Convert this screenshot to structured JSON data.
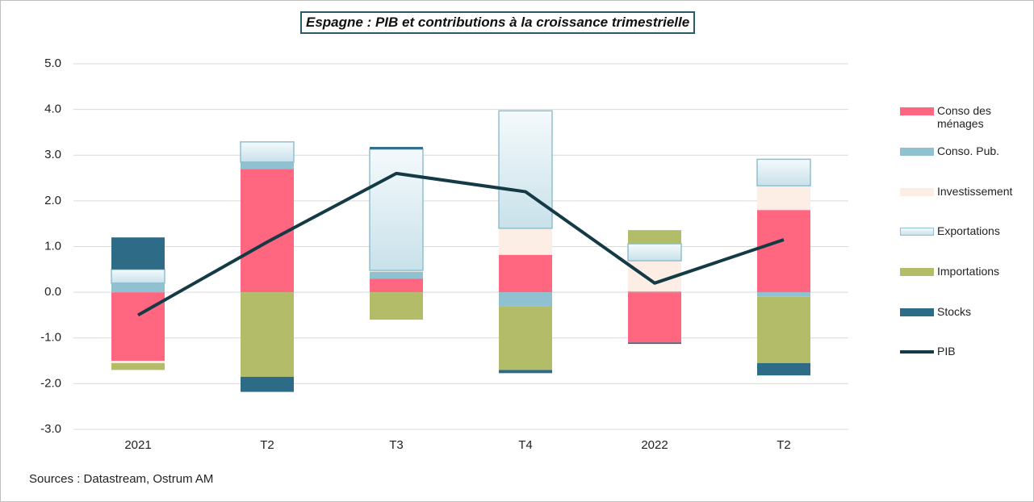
{
  "chart_data": {
    "type": "bar",
    "stacked": true,
    "title": "Espagne : PIB et contributions à la croissance trimestrielle",
    "source": "Sources : Datastream,  Ostrum  AM",
    "categories": [
      "2021",
      "T2",
      "T3",
      "T4",
      "2022",
      "T2"
    ],
    "ylim": [
      -3,
      5
    ],
    "yticks": [
      {
        "value": 5,
        "label": "5.0"
      },
      {
        "value": 4,
        "label": "4.0"
      },
      {
        "value": 3,
        "label": "3.0"
      },
      {
        "value": 2,
        "label": "2.0"
      },
      {
        "value": 1,
        "label": "1.0"
      },
      {
        "value": 0,
        "label": "0.0"
      },
      {
        "value": -1,
        "label": "-1.0"
      },
      {
        "value": -2,
        "label": "-2.0"
      },
      {
        "value": -3,
        "label": "-3.0"
      }
    ],
    "grid": true,
    "series": [
      {
        "name": "Conso des ménages",
        "color": "#ff6680",
        "values": [
          -1.5,
          2.7,
          0.3,
          0.82,
          -1.1,
          1.8
        ]
      },
      {
        "name": "Conso. Pub.",
        "color": "#8fc1d0",
        "values": [
          0.2,
          0.15,
          0.15,
          -0.3,
          0.02,
          -0.1
        ]
      },
      {
        "name": "Investissement",
        "color": "#fdeee5",
        "values": [
          -0.05,
          0,
          0.03,
          0.58,
          0.67,
          0.53
        ]
      },
      {
        "name": "Exportations",
        "color": "#d5e8ef",
        "values": [
          0.3,
          0.44,
          2.65,
          2.57,
          0.37,
          0.58
        ]
      },
      {
        "name": "Importations",
        "color": "#b3bd69",
        "values": [
          -0.15,
          -1.85,
          -0.6,
          -1.4,
          0.3,
          -1.45
        ]
      },
      {
        "name": "Stocks",
        "color": "#2e6b87",
        "values": [
          0.7,
          -0.33,
          0.05,
          -0.07,
          -0.03,
          -0.27
        ]
      },
      {
        "name": "PIB",
        "type": "line",
        "color": "#143a45",
        "values": [
          -0.5,
          1.1,
          2.6,
          2.2,
          0.2,
          1.15
        ]
      }
    ]
  }
}
